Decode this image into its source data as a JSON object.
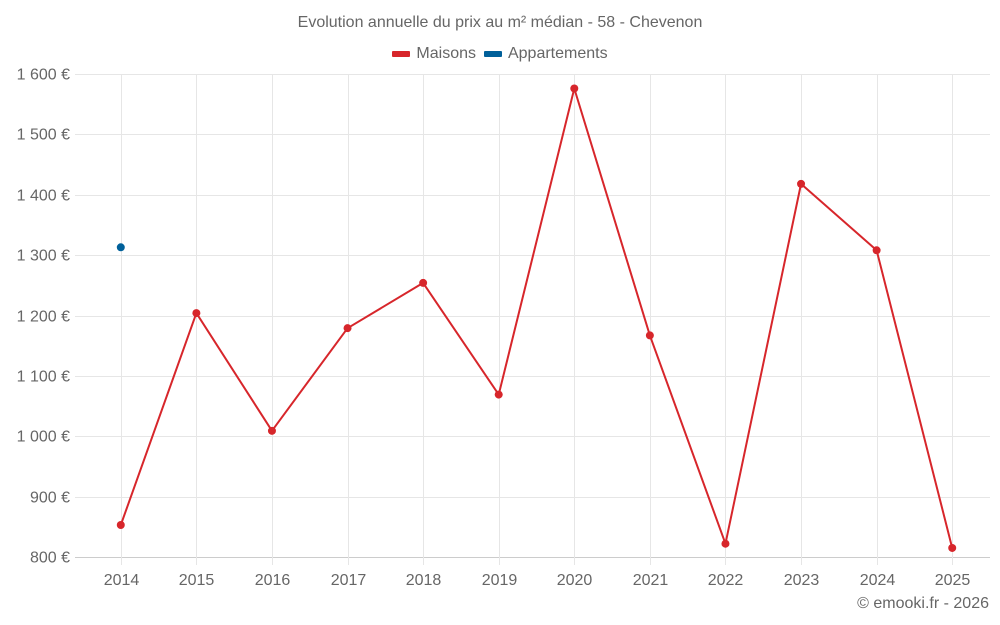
{
  "chart_data": {
    "type": "line",
    "title": "Evolution annuelle du prix au m² médian - 58 - Chevenon",
    "xlabel": "",
    "ylabel": "",
    "categories": [
      "2014",
      "2015",
      "2016",
      "2017",
      "2018",
      "2019",
      "2020",
      "2021",
      "2022",
      "2023",
      "2024",
      "2025"
    ],
    "series": [
      {
        "name": "Maisons",
        "color": "#d7262b",
        "values": [
          853,
          1204,
          1009,
          1179,
          1254,
          1069,
          1576,
          1167,
          822,
          1418,
          1308,
          815
        ]
      },
      {
        "name": "Appartements",
        "color": "#00609a",
        "values": [
          1313,
          null,
          null,
          null,
          null,
          null,
          null,
          null,
          null,
          null,
          null,
          null
        ]
      }
    ],
    "ylim": [
      800,
      1600
    ],
    "yticks": [
      800,
      900,
      1000,
      1100,
      1200,
      1300,
      1400,
      1500,
      1600
    ],
    "ytick_labels": [
      "800 €",
      "900 €",
      "1 000 €",
      "1 100 €",
      "1 200 €",
      "1 300 €",
      "1 400 €",
      "1 500 €",
      "1 600 €"
    ],
    "grid": true,
    "legend_position": "top"
  },
  "header": {
    "title": "Evolution annuelle du prix au m² médian - 58 - Chevenon"
  },
  "legend": {
    "items": [
      {
        "label": "Maisons",
        "color": "#d7262b"
      },
      {
        "label": "Appartements",
        "color": "#00609a"
      }
    ]
  },
  "credits": "© emooki.fr - 2026"
}
